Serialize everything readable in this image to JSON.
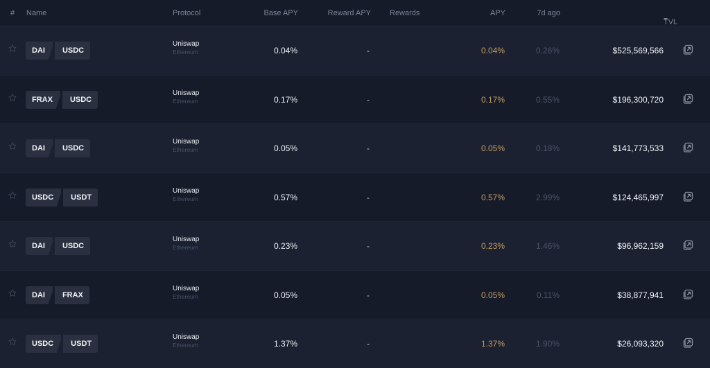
{
  "header": {
    "num": "#",
    "name": "Name",
    "protocol": "Protocol",
    "base_apy": "Base APY",
    "reward_apy": "Reward APY",
    "rewards": "Rewards",
    "apy": "APY",
    "seven_d": "7d ago",
    "tvl": "TVL",
    "tvl_sort": "sort-desc-icon"
  },
  "rows": [
    {
      "t1": "DAI",
      "t2": "USDC",
      "protocol": "Uniswap",
      "chain": "Ethereum",
      "base": "0.04%",
      "reward": "-",
      "apy": "0.04%",
      "d7": "0.26%",
      "tvl": "$525,569,566"
    },
    {
      "t1": "FRAX",
      "t2": "USDC",
      "protocol": "Uniswap",
      "chain": "Ethereum",
      "base": "0.17%",
      "reward": "-",
      "apy": "0.17%",
      "d7": "0.55%",
      "tvl": "$196,300,720"
    },
    {
      "t1": "DAI",
      "t2": "USDC",
      "protocol": "Uniswap",
      "chain": "Ethereum",
      "base": "0.05%",
      "reward": "-",
      "apy": "0.05%",
      "d7": "0.18%",
      "tvl": "$141,773,533"
    },
    {
      "t1": "USDC",
      "t2": "USDT",
      "protocol": "Uniswap",
      "chain": "Ethereum",
      "base": "0.57%",
      "reward": "-",
      "apy": "0.57%",
      "d7": "2.99%",
      "tvl": "$124,465,997"
    },
    {
      "t1": "DAI",
      "t2": "USDC",
      "protocol": "Uniswap",
      "chain": "Ethereum",
      "base": "0.23%",
      "reward": "-",
      "apy": "0.23%",
      "d7": "1.46%",
      "tvl": "$96,962,159"
    },
    {
      "t1": "DAI",
      "t2": "FRAX",
      "protocol": "Uniswap",
      "chain": "Ethereum",
      "base": "0.05%",
      "reward": "-",
      "apy": "0.05%",
      "d7": "0.11%",
      "tvl": "$38,877,941"
    },
    {
      "t1": "USDC",
      "t2": "USDT",
      "protocol": "Uniswap",
      "chain": "Ethereum",
      "base": "1.37%",
      "reward": "-",
      "apy": "1.37%",
      "d7": "1.90%",
      "tvl": "$26,093,320"
    }
  ],
  "colors": {
    "apy": "#c39b60",
    "background": "#161b2a",
    "row_alt": "#1b2131",
    "token_bg": "#2a303f"
  },
  "icons": {
    "star": "star-icon",
    "external": "external-link-icon"
  }
}
